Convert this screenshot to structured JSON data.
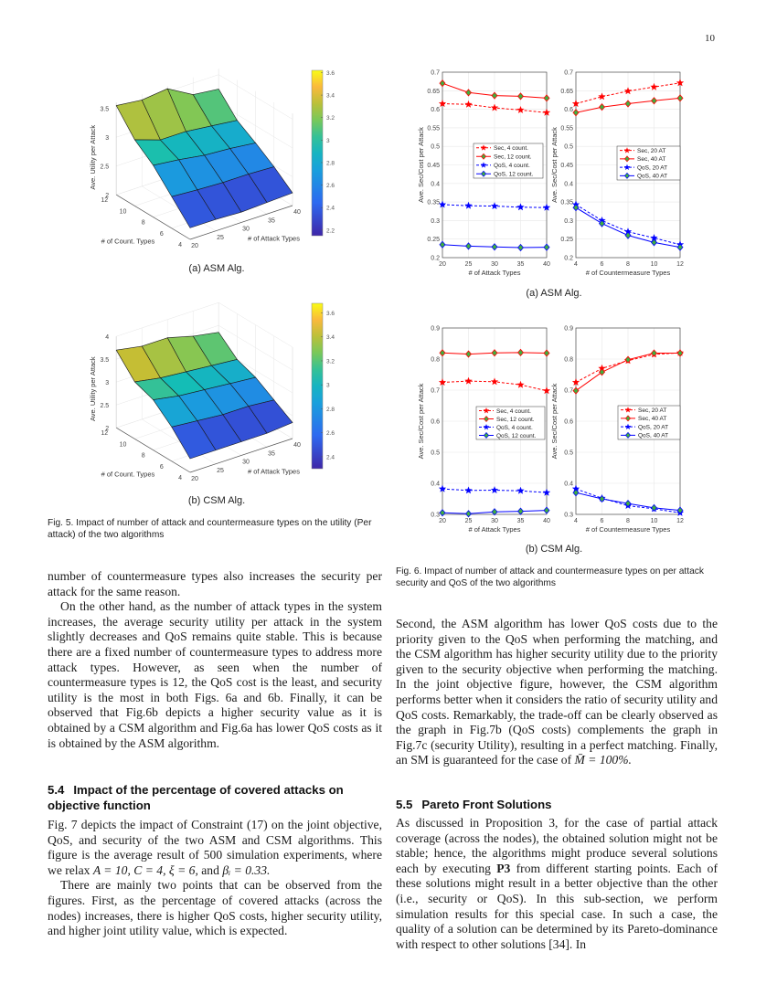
{
  "page_number": "10",
  "fig5": {
    "sub_a": "(a) ASM Alg.",
    "sub_b": "(b) CSM Alg.",
    "caption": "Fig. 5. Impact of number of attack and countermeasure types on the utility (Per attack) of the two algorithms"
  },
  "fig6": {
    "sub_a": "(a) ASM Alg.",
    "sub_b": "(b) CSM Alg.",
    "caption": "Fig. 6. Impact of number of attack and countermeasure types on per attack security and QoS of the two algorithms"
  },
  "left_col": {
    "p1": "number of countermeasure types also increases the security per attack for the same reason.",
    "p2": "On the other hand, as the number of attack types in the system increases, the average security utility per attack in the system slightly decreases and QoS remains quite stable. This is because there are a fixed number of countermeasure types to address more attack types. However, as seen when the number of countermeasure types is 12, the QoS cost is the least, and security utility is the most in both Figs. 6a and 6b. Finally, it can be observed that Fig.6b depicts a higher security value as it is obtained by a CSM algorithm and Fig.6a has lower QoS costs as it is obtained by the ASM algorithm.",
    "section_num": "5.4",
    "section_title": "Impact of the percentage of covered attacks on objective function",
    "p3_a": "Fig. 7 depicts the impact of Constraint (17) on the joint objective, QoS, and security of the two ASM and CSM algorithms. This figure is the average result of 500 simulation experiments, where we relax ",
    "p3_math": "A = 10, C = 4, ξ = 6,",
    "p3_b": " and ",
    "p3_math2": "βᵢ = 0.33.",
    "p4": "There are mainly two points that can be observed from the figures. First, as the percentage of covered attacks (across the nodes) increases, there is higher QoS costs, higher security utility, and higher joint utility value, which is expected."
  },
  "right_col": {
    "p1_a": "Second, the ASM algorithm has lower QoS costs due to the priority given to the QoS when performing the matching, and the CSM algorithm has higher security utility due to the priority given to the security objective when performing the matching. In the joint objective figure, however, the CSM algorithm performs better when it considers the ratio of security utility and QoS costs. Remarkably, the trade-off can be clearly observed as the graph in Fig.7b (QoS costs) complements the graph in Fig.7c (security Utility), resulting in a perfect matching. Finally, an SM is guaranteed for the case of ",
    "p1_math": "M̄ = 100%.",
    "section_num": "5.5",
    "section_title": "Pareto Front Solutions",
    "p2_a": "As discussed in Proposition 3, for the case of partial attack coverage (across the nodes), the obtained solution might not be stable; hence, the algorithms might produce several solutions each by executing ",
    "p2_bold": "P3",
    "p2_b": " from different starting points. Each of these solutions might result in a better objective than the other (i.e., security or QoS). In this sub-section, we perform simulation results for this special case. In such a case, the quality of a solution can be determined by its Pareto-dominance with respect to other solutions [34]. In"
  },
  "chart_data": [
    {
      "id": "fig5a",
      "type": "surface",
      "zlabel": "Ave. Utility per Attack",
      "xlabel": "# of Attack Types",
      "ylabel": "# of Count. Types",
      "x": [
        20,
        25,
        30,
        35,
        40
      ],
      "y": [
        4,
        6,
        8,
        10,
        12
      ],
      "z": [
        [
          2.2,
          2.2,
          2.18,
          2.2,
          2.22
        ],
        [
          2.55,
          2.52,
          2.5,
          2.5,
          2.48
        ],
        [
          2.9,
          2.85,
          2.78,
          2.75,
          2.7
        ],
        [
          3.15,
          3.0,
          3.0,
          2.95,
          2.9
        ],
        [
          3.55,
          3.5,
          3.55,
          3.3,
          3.25
        ]
      ],
      "zticks": [
        2,
        2.5,
        3,
        3.5
      ],
      "zlim": [
        2,
        3.6
      ],
      "colorbar": {
        "ticks": [
          2.2,
          2.4,
          2.6,
          2.8,
          3,
          3.2,
          3.4,
          3.6
        ],
        "range": [
          2.15,
          3.62
        ],
        "colormap": "parula"
      }
    },
    {
      "id": "fig5b",
      "type": "surface",
      "zlabel": "Ave. Utility per Attack",
      "xlabel": "# of Attack Types",
      "ylabel": "# of Count. Types",
      "x": [
        20,
        25,
        30,
        35,
        40
      ],
      "y": [
        4,
        6,
        8,
        10,
        12
      ],
      "z": [
        [
          2.3,
          2.3,
          2.3,
          2.3,
          2.35
        ],
        [
          2.75,
          2.7,
          2.65,
          2.65,
          2.6
        ],
        [
          3.1,
          3.0,
          2.95,
          2.9,
          2.85
        ],
        [
          3.25,
          3.15,
          3.1,
          3.05,
          3.0
        ],
        [
          3.7,
          3.6,
          3.6,
          3.45,
          3.35
        ]
      ],
      "zticks": [
        2,
        2.5,
        3,
        3.5,
        4
      ],
      "zlim": [
        2,
        4
      ],
      "colorbar": {
        "ticks": [
          2.4,
          2.6,
          2.8,
          3,
          3.2,
          3.4,
          3.6
        ],
        "range": [
          2.3,
          3.68
        ],
        "colormap": "parula"
      }
    },
    {
      "id": "fig6a-left",
      "type": "line",
      "xlabel": "# of Attack Types",
      "ylabel": "Ave. Sec/Cost per Attack",
      "x": [
        20,
        25,
        30,
        35,
        40
      ],
      "xticks": [
        20,
        25,
        30,
        35,
        40
      ],
      "xlim": [
        20,
        40
      ],
      "ylim": [
        0.2,
        0.7
      ],
      "yticks": [
        0.2,
        0.25,
        0.3,
        0.35,
        0.4,
        0.45,
        0.5,
        0.55,
        0.6,
        0.65,
        0.7
      ],
      "grid": true,
      "legend": "center-right",
      "series": [
        {
          "name": "Sec, 4 count.",
          "values": [
            0.615,
            0.613,
            0.604,
            0.598,
            0.591
          ],
          "color": "#ff0000",
          "dash": true,
          "marker": "star"
        },
        {
          "name": "Sec, 12 count.",
          "values": [
            0.67,
            0.645,
            0.637,
            0.635,
            0.63
          ],
          "color": "#ff0000",
          "dash": false,
          "marker": "diamond"
        },
        {
          "name": "QoS, 4 count.",
          "values": [
            0.343,
            0.34,
            0.339,
            0.336,
            0.335
          ],
          "color": "#0000ff",
          "dash": true,
          "marker": "star"
        },
        {
          "name": "QoS, 12 count.",
          "values": [
            0.235,
            0.231,
            0.229,
            0.227,
            0.228
          ],
          "color": "#0000ff",
          "dash": false,
          "marker": "diamond"
        }
      ]
    },
    {
      "id": "fig6a-right",
      "type": "line",
      "xlabel": "# of Countermeasure Types",
      "ylabel": "Ave. Sec/Cost per Attack",
      "x": [
        4,
        6,
        8,
        10,
        12
      ],
      "xticks": [
        4,
        6,
        8,
        10,
        12
      ],
      "xlim": [
        4,
        12
      ],
      "ylim": [
        0.2,
        0.7
      ],
      "yticks": [
        0.2,
        0.25,
        0.3,
        0.35,
        0.4,
        0.45,
        0.5,
        0.55,
        0.6,
        0.65,
        0.7
      ],
      "grid": true,
      "legend": "center-right",
      "series": [
        {
          "name": "Sec, 20 AT",
          "values": [
            0.615,
            0.634,
            0.649,
            0.66,
            0.671
          ],
          "color": "#ff0000",
          "dash": true,
          "marker": "star"
        },
        {
          "name": "Sec, 40 AT",
          "values": [
            0.591,
            0.606,
            0.615,
            0.623,
            0.63
          ],
          "color": "#ff0000",
          "dash": false,
          "marker": "diamond"
        },
        {
          "name": "QoS, 20 AT",
          "values": [
            0.343,
            0.3,
            0.27,
            0.253,
            0.235
          ],
          "color": "#0000ff",
          "dash": true,
          "marker": "star"
        },
        {
          "name": "QoS, 40 AT",
          "values": [
            0.335,
            0.292,
            0.26,
            0.241,
            0.228
          ],
          "color": "#0000ff",
          "dash": false,
          "marker": "diamond"
        }
      ]
    },
    {
      "id": "fig6b-left",
      "type": "line",
      "xlabel": "# of Attack Types",
      "ylabel": "Ave. Sec/Cost per Attack",
      "x": [
        20,
        25,
        30,
        35,
        40
      ],
      "xticks": [
        20,
        25,
        30,
        35,
        40
      ],
      "xlim": [
        20,
        40
      ],
      "ylim": [
        0.3,
        0.9
      ],
      "yticks": [
        0.3,
        0.4,
        0.5,
        0.6,
        0.7,
        0.8,
        0.9
      ],
      "grid": true,
      "legend": "center-right",
      "series": [
        {
          "name": "Sec, 4 count.",
          "values": [
            0.725,
            0.729,
            0.727,
            0.717,
            0.698
          ],
          "color": "#ff0000",
          "dash": true,
          "marker": "star"
        },
        {
          "name": "Sec, 12 count.",
          "values": [
            0.82,
            0.816,
            0.82,
            0.821,
            0.819
          ],
          "color": "#ff0000",
          "dash": false,
          "marker": "diamond"
        },
        {
          "name": "QoS, 4 count.",
          "values": [
            0.382,
            0.377,
            0.378,
            0.376,
            0.37
          ],
          "color": "#0000ff",
          "dash": true,
          "marker": "star"
        },
        {
          "name": "QoS, 12 count.",
          "values": [
            0.305,
            0.302,
            0.308,
            0.31,
            0.313
          ],
          "color": "#0000ff",
          "dash": false,
          "marker": "diamond"
        }
      ]
    },
    {
      "id": "fig6b-right",
      "type": "line",
      "xlabel": "# of Countermeasure Types",
      "ylabel": "Ave. Sec/Cost per Attack",
      "x": [
        4,
        6,
        8,
        10,
        12
      ],
      "xticks": [
        4,
        6,
        8,
        10,
        12
      ],
      "xlim": [
        4,
        12
      ],
      "ylim": [
        0.3,
        0.9
      ],
      "yticks": [
        0.3,
        0.4,
        0.5,
        0.6,
        0.7,
        0.8,
        0.9
      ],
      "grid": true,
      "legend": "center-right",
      "series": [
        {
          "name": "Sec, 20 AT",
          "values": [
            0.725,
            0.77,
            0.795,
            0.815,
            0.82
          ],
          "color": "#ff0000",
          "dash": true,
          "marker": "star"
        },
        {
          "name": "Sec, 40 AT",
          "values": [
            0.698,
            0.758,
            0.798,
            0.819,
            0.819
          ],
          "color": "#ff0000",
          "dash": false,
          "marker": "diamond"
        },
        {
          "name": "QoS, 20 AT",
          "values": [
            0.382,
            0.352,
            0.328,
            0.318,
            0.305
          ],
          "color": "#0000ff",
          "dash": true,
          "marker": "star"
        },
        {
          "name": "QoS, 40 AT",
          "values": [
            0.37,
            0.35,
            0.335,
            0.321,
            0.313
          ],
          "color": "#0000ff",
          "dash": false,
          "marker": "diamond"
        }
      ]
    }
  ]
}
